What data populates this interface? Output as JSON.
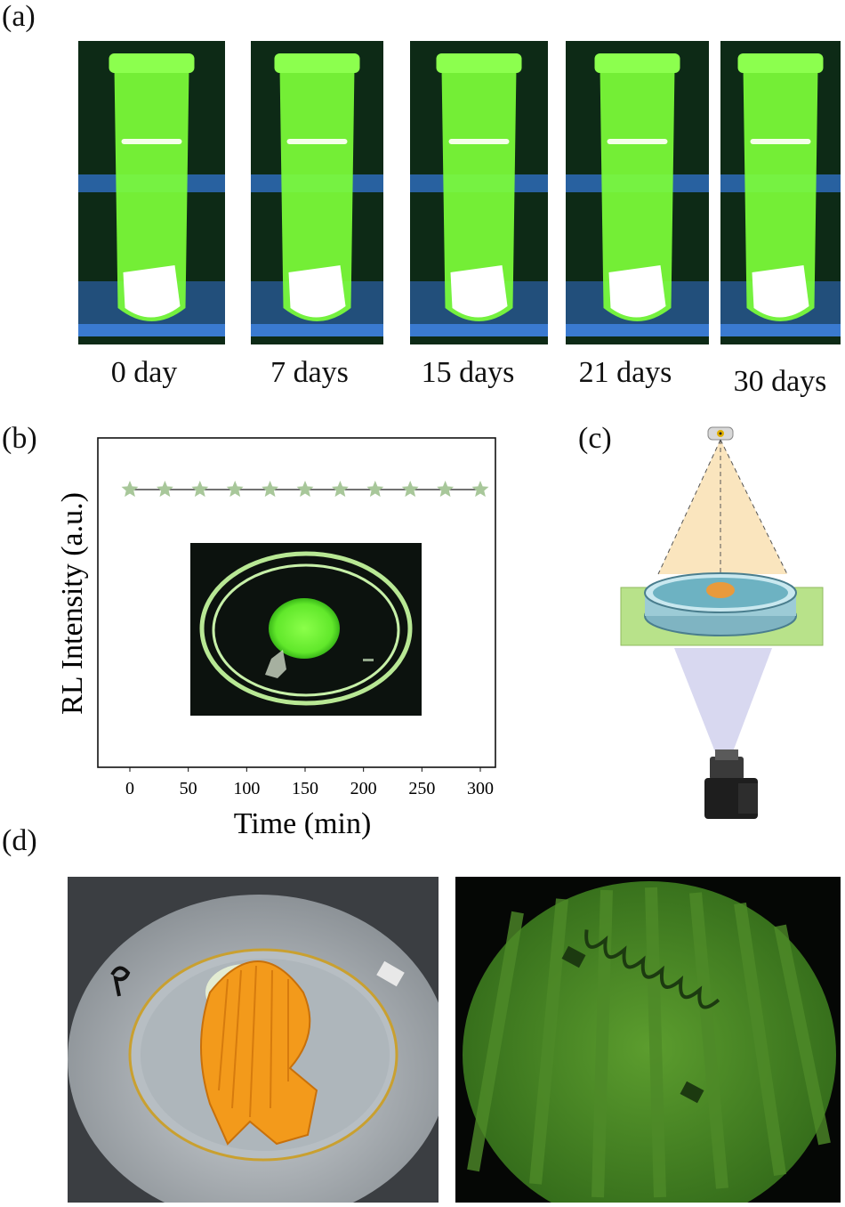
{
  "panels": {
    "a": {
      "label": "(a)",
      "tubes": [
        {
          "caption": "0 day"
        },
        {
          "caption": "7 days"
        },
        {
          "caption": "15 days"
        },
        {
          "caption": "21 days"
        },
        {
          "caption": "30 days"
        }
      ]
    },
    "b": {
      "label": "(b)"
    },
    "c": {
      "label": "(c)"
    },
    "d": {
      "label": "(d)"
    }
  },
  "chart_data": {
    "type": "line",
    "xlabel": "Time (min)",
    "ylabel": "RL Intensity (a.u.)",
    "xlim": [
      -25,
      315
    ],
    "x_ticks": [
      0,
      50,
      100,
      150,
      200,
      250,
      300
    ],
    "y_ticks_shown": false,
    "marker": "star",
    "series": [
      {
        "color": "#a8c79a",
        "x": [
          0,
          30,
          60,
          90,
          120,
          150,
          180,
          210,
          240,
          270,
          300
        ],
        "y": [
          1,
          1,
          1,
          1,
          1,
          1,
          1,
          1,
          1,
          1,
          1
        ]
      }
    ],
    "inset": "petri dish photo with green luminescent disk"
  },
  "colors": {
    "glow_green": "#7dff3a",
    "series_green": "#a8c79a",
    "scallop_orange": "#f39a1b"
  }
}
